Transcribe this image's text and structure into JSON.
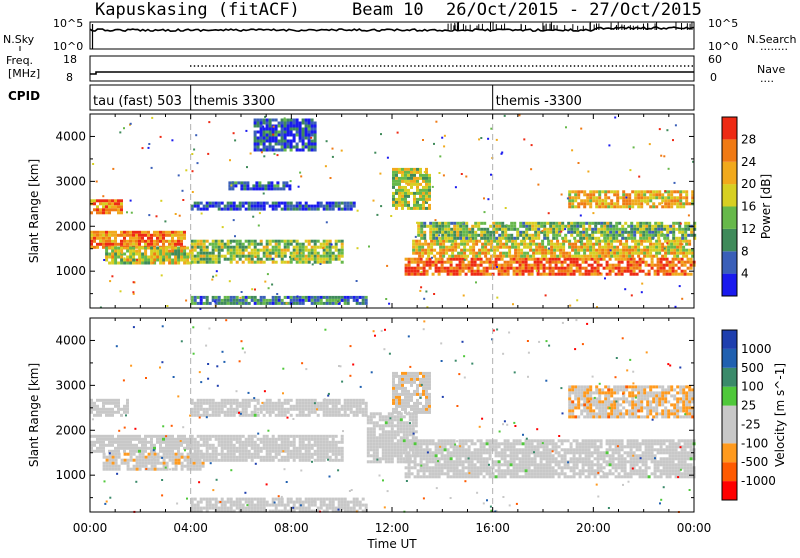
{
  "header": {
    "station": "Kapuskasing (fitACF)",
    "beam": "Beam 10",
    "dates": "26/Oct/2015 - 27/Oct/2015"
  },
  "nsky_panel": {
    "left_label": "N.Sky",
    "left_ticks": [
      "10^5",
      "10^0"
    ],
    "right_label": "N.Search",
    "right_ticks": [
      "10^5",
      "10^0"
    ],
    "right_key": "........"
  },
  "freq_panel": {
    "left_label_1": "Freq.",
    "left_label_2": "[MHz]",
    "left_ticks": [
      "18",
      "8"
    ],
    "right_label": "Nave",
    "right_ticks": [
      "60",
      "0"
    ],
    "right_key": "...."
  },
  "cpid_panel": {
    "label": "CPID",
    "programs": [
      {
        "name": "tau (fast) 503",
        "start_hour": 0
      },
      {
        "name": "themis 3300",
        "start_hour": 4
      },
      {
        "name": "themis -3300",
        "start_hour": 16
      }
    ]
  },
  "axes": {
    "xlabel": "Time UT",
    "ylabel": "Slant Range [km]",
    "x_ticks": [
      "00:00",
      "04:00",
      "08:00",
      "12:00",
      "16:00",
      "20:00",
      "00:00"
    ],
    "y_ticks": [
      "1000",
      "2000",
      "3000",
      "4000"
    ]
  },
  "colors": {
    "power": [
      "#1a1aee",
      "#3a5fb8",
      "#3f8a5a",
      "#66b84a",
      "#d7cf22",
      "#f1a91c",
      "#f07a14",
      "#ee2a14"
    ],
    "velocity": [
      "#ff0000",
      "#ff5a00",
      "#ff9a1e",
      "#c8c8c8",
      "#c8c8c8",
      "#4fc83a",
      "#3a8a6a",
      "#2060b0",
      "#1f3fae"
    ],
    "ground": "#c8c8c8"
  },
  "chart_data": [
    {
      "type": "heatmap",
      "title": "Power",
      "colorbar_label": "Power [dB]",
      "colorbar_ticks": [
        "4",
        "8",
        "12",
        "16",
        "20",
        "24",
        "28"
      ],
      "range": [
        0,
        32
      ],
      "x_range_hours": [
        0,
        24
      ],
      "y_range_km": [
        180,
        4500
      ],
      "features": [
        {
          "t0": 0.0,
          "t1": 3.8,
          "r0": 1500,
          "r1": 1900,
          "value": 26
        },
        {
          "t0": 0.0,
          "t1": 1.2,
          "r0": 2300,
          "r1": 2600,
          "value": 24
        },
        {
          "t0": 0.6,
          "t1": 4.0,
          "r0": 1150,
          "r1": 1550,
          "value": 18
        },
        {
          "t0": 4.0,
          "t1": 10.0,
          "r0": 1200,
          "r1": 1700,
          "value": 15
        },
        {
          "t0": 4.0,
          "t1": 10.5,
          "r0": 2350,
          "r1": 2550,
          "value": 5
        },
        {
          "t0": 5.5,
          "t1": 8.0,
          "r0": 2850,
          "r1": 3000,
          "value": 6
        },
        {
          "t0": 4.0,
          "t1": 11.0,
          "r0": 250,
          "r1": 450,
          "value": 9
        },
        {
          "t0": 6.5,
          "t1": 9.0,
          "r0": 3700,
          "r1": 4400,
          "value": 6
        },
        {
          "t0": 12.5,
          "t1": 24.0,
          "r0": 950,
          "r1": 1300,
          "value": 27
        },
        {
          "t0": 12.8,
          "t1": 24.0,
          "r0": 1300,
          "r1": 1700,
          "value": 20
        },
        {
          "t0": 13.0,
          "t1": 24.0,
          "r0": 1700,
          "r1": 2100,
          "value": 14
        },
        {
          "t0": 12.0,
          "t1": 13.5,
          "r0": 2400,
          "r1": 3300,
          "value": 17
        },
        {
          "t0": 19.0,
          "t1": 24.0,
          "r0": 2400,
          "r1": 2800,
          "value": 21
        }
      ]
    },
    {
      "type": "heatmap",
      "title": "Velocity",
      "colorbar_label": "Velocity [m s^-1]",
      "colorbar_ticks": [
        "1000",
        "500",
        "100",
        "25",
        "-25",
        "-100",
        "-500",
        "-1000"
      ],
      "range": [
        -1000,
        1000
      ],
      "x_range_hours": [
        0,
        24
      ],
      "y_range_km": [
        180,
        4500
      ],
      "features": [
        {
          "t0": 0.0,
          "t1": 4.0,
          "r0": 1500,
          "r1": 1900,
          "value": -50,
          "ground": true
        },
        {
          "t0": 0.0,
          "t1": 1.5,
          "r0": 2300,
          "r1": 2700,
          "value": 0,
          "ground": true
        },
        {
          "t0": 0.5,
          "t1": 4.5,
          "r0": 1150,
          "r1": 1500,
          "value": -200
        },
        {
          "t0": 4.0,
          "t1": 11.0,
          "r0": 2300,
          "r1": 2700,
          "value": 0,
          "ground": true
        },
        {
          "t0": 4.0,
          "t1": 10.0,
          "r0": 1300,
          "r1": 1900,
          "value": -150
        },
        {
          "t0": 4.0,
          "t1": 11.0,
          "r0": 200,
          "r1": 500,
          "value": -80
        },
        {
          "t0": 11.0,
          "t1": 13.0,
          "r0": 1300,
          "r1": 2400,
          "value": 0,
          "ground": true
        },
        {
          "t0": 12.5,
          "t1": 24.0,
          "r0": 950,
          "r1": 1800,
          "value": 0,
          "ground": true
        },
        {
          "t0": 12.0,
          "t1": 13.5,
          "r0": 2400,
          "r1": 3300,
          "value": -200
        },
        {
          "t0": 19.0,
          "t1": 24.0,
          "r0": 2300,
          "r1": 3000,
          "value": -300
        }
      ]
    }
  ]
}
